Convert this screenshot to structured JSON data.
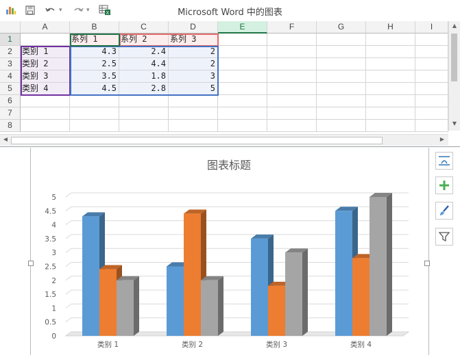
{
  "window": {
    "title": "Microsoft Word 中的图表"
  },
  "sheet": {
    "columns": [
      "A",
      "B",
      "C",
      "D",
      "E",
      "F",
      "G",
      "H",
      "I"
    ],
    "selected_column": "E",
    "row_numbers": [
      "1",
      "2",
      "3",
      "4",
      "5",
      "6",
      "7",
      "8"
    ],
    "header_row": [
      "",
      "系列 1",
      "系列 2",
      "系列 3"
    ],
    "rows": [
      [
        "类别 1",
        "4.3",
        "2.4",
        "2"
      ],
      [
        "类别 2",
        "2.5",
        "4.4",
        "2"
      ],
      [
        "类别 3",
        "3.5",
        "1.8",
        "3"
      ],
      [
        "类别 4",
        "4.5",
        "2.8",
        "5"
      ]
    ]
  },
  "chart_data": {
    "type": "bar",
    "title": "图表标题",
    "categories": [
      "类别 1",
      "类别 2",
      "类别 3",
      "类别 4"
    ],
    "series": [
      {
        "name": "系列 1",
        "values": [
          4.3,
          2.5,
          3.5,
          4.5
        ],
        "color": "#5b9bd5"
      },
      {
        "name": "系列 2",
        "values": [
          2.4,
          4.4,
          1.8,
          2.8
        ],
        "color": "#ed7d31"
      },
      {
        "name": "系列 3",
        "values": [
          2,
          2,
          3,
          5
        ],
        "color": "#a5a5a5"
      }
    ],
    "y_ticks": [
      "0",
      "0.5",
      "1",
      "1.5",
      "2",
      "2.5",
      "3",
      "3.5",
      "4",
      "4.5",
      "5"
    ],
    "ylim": [
      0,
      5
    ],
    "grid": true,
    "style": "3d-column"
  },
  "colors": {
    "excel_green": "#217346",
    "series_range_border": "#4472c4",
    "category_range_border": "#7030a0",
    "series_name_border": "#e26b6b"
  },
  "side_buttons": [
    "layout-options-icon",
    "chart-elements-plus-icon",
    "chart-styles-brush-icon",
    "chart-filters-icon"
  ]
}
